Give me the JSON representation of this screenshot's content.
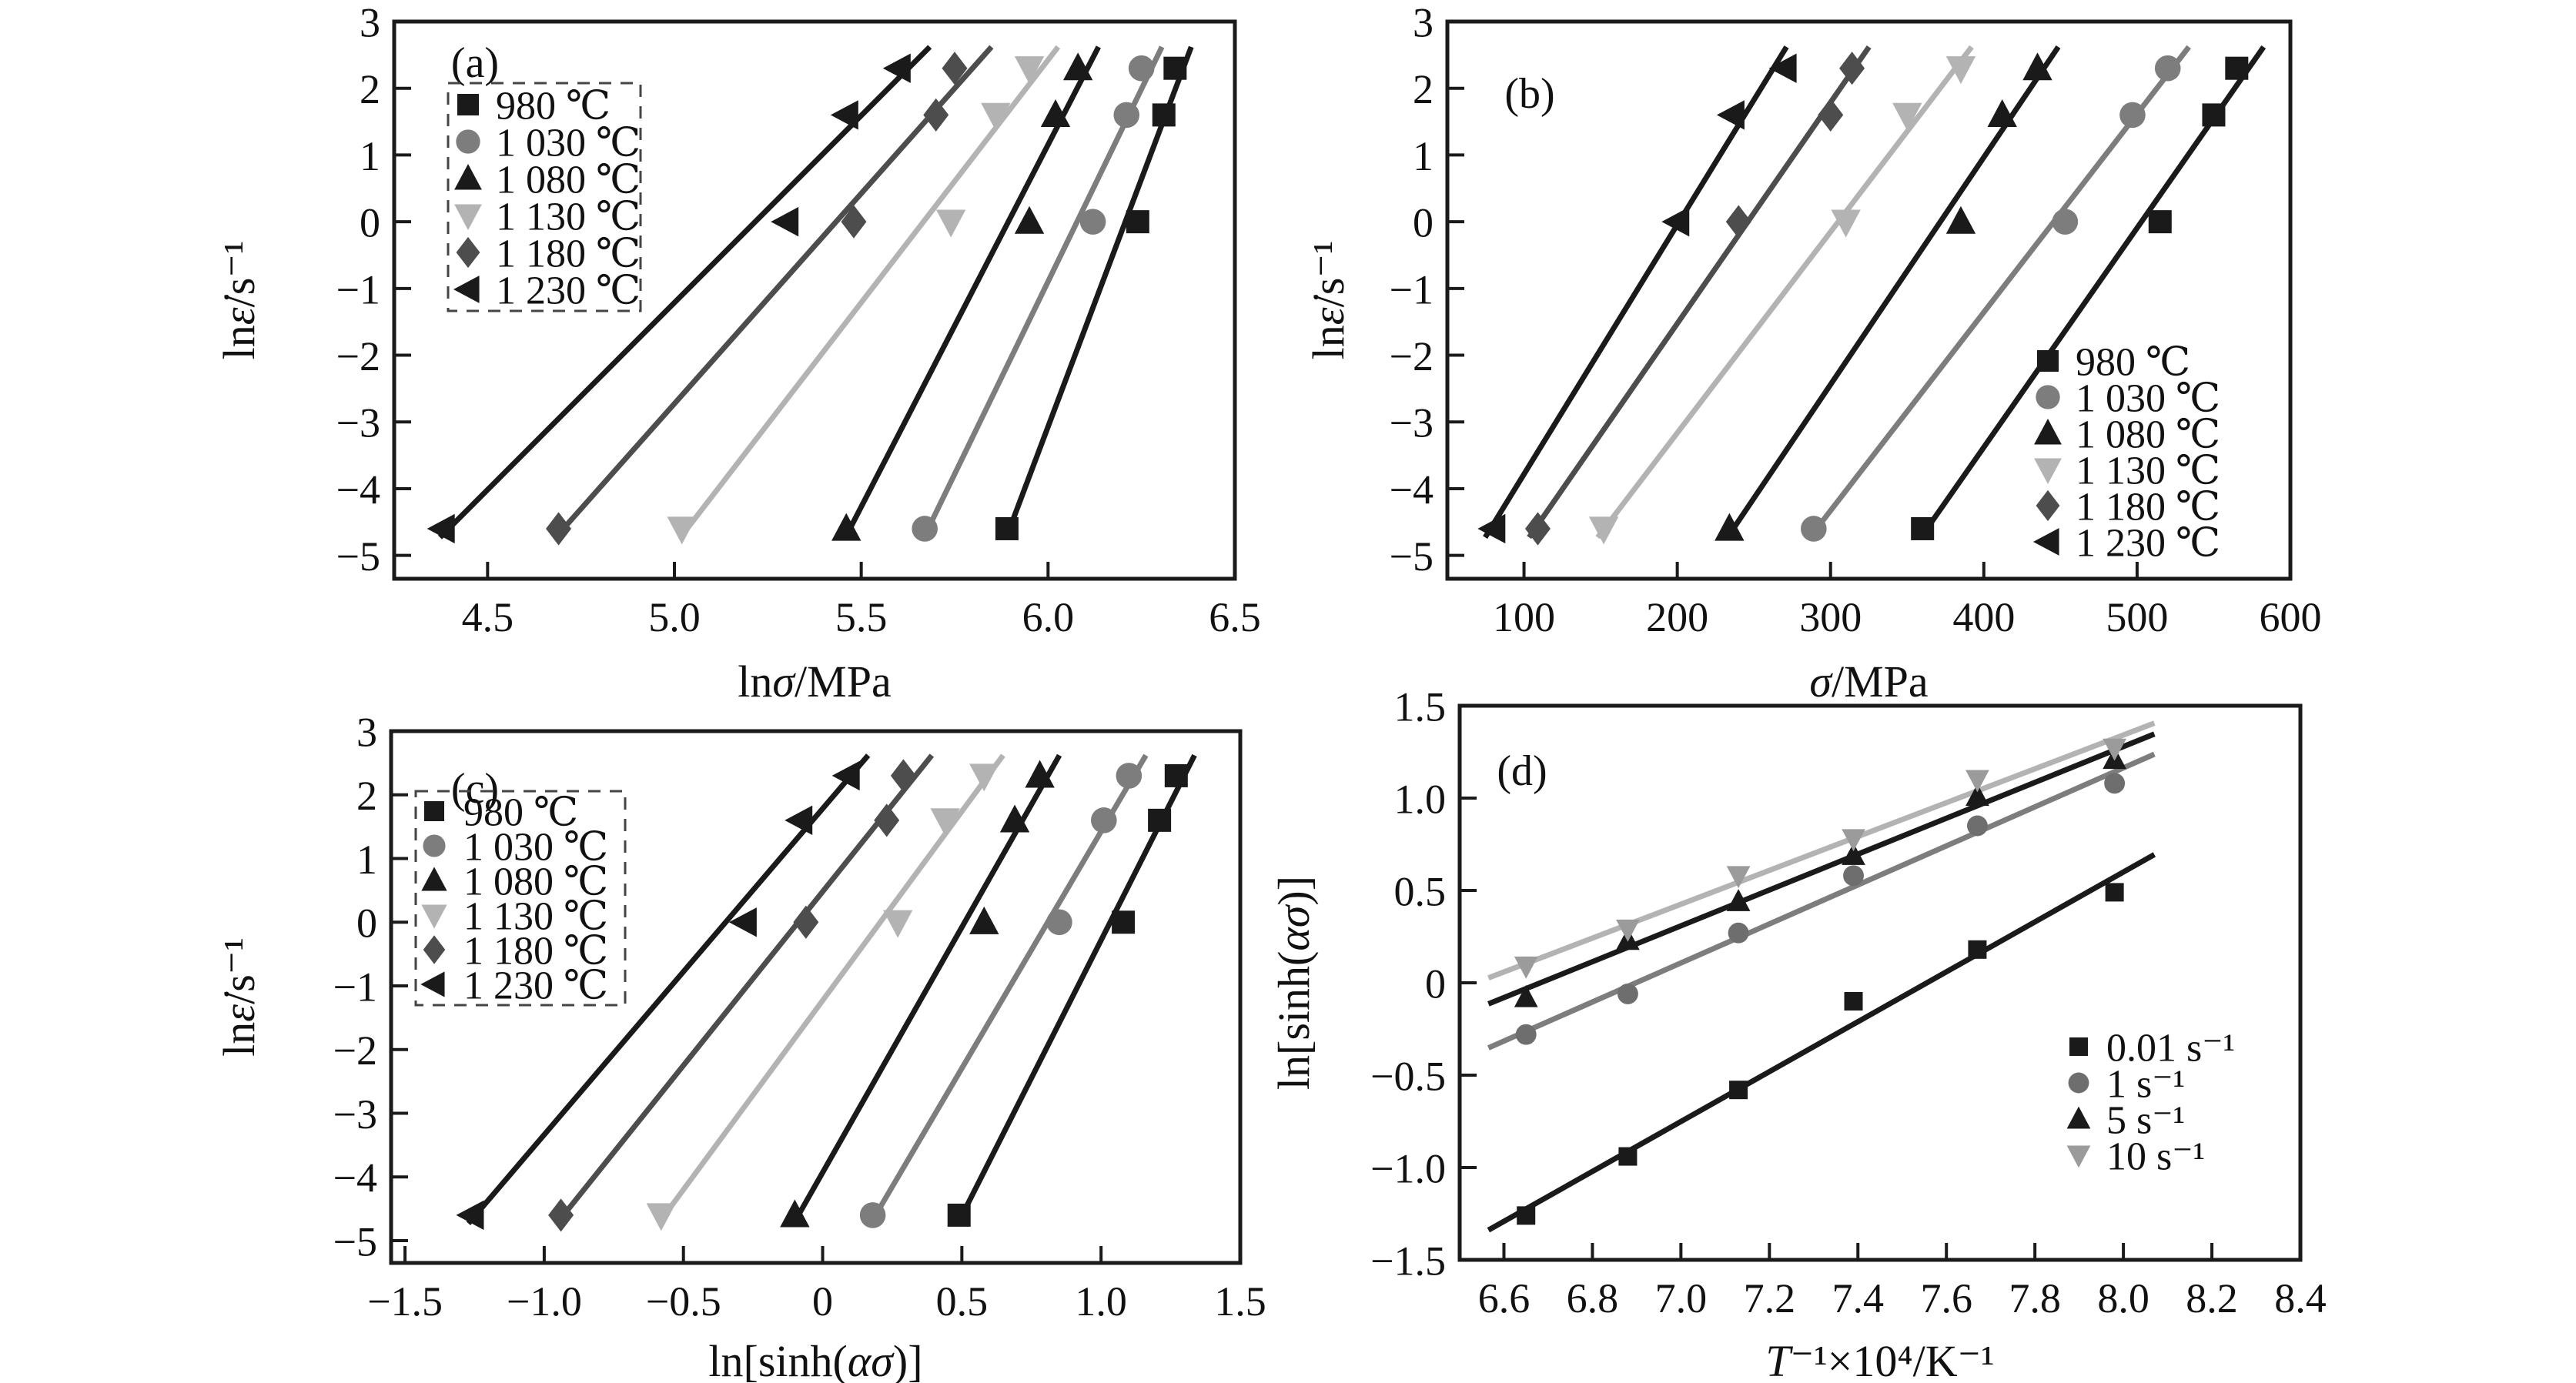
{
  "figure": {
    "background": "#ffffff",
    "ink_color": "#1a1a1a",
    "panel_tags": [
      "(a)",
      "(b)",
      "(c)",
      "(d)"
    ]
  },
  "chart_data": [
    {
      "id": "a",
      "type": "scatter",
      "title": "(a)",
      "xlabel": "lnσ/MPa",
      "ylabel": "lnε̇/s⁻¹",
      "xlim": [
        4.25,
        6.5
      ],
      "ylim": [
        -5.35,
        3
      ],
      "xtick_values": [
        4.5,
        5.0,
        5.5,
        6.0,
        6.5
      ],
      "xtick_labels": [
        "4.5",
        "5.0",
        "5.5",
        "6.0",
        "6.5"
      ],
      "ytick_values": [
        3,
        2,
        1,
        0,
        -1,
        -2,
        -3,
        -4,
        -5
      ],
      "ytick_labels": [
        "3",
        "2",
        "1",
        "0",
        "−1",
        "−2",
        "−3",
        "−4",
        "−5"
      ],
      "grid": false,
      "legend_position": "top-left",
      "trend_lines": true,
      "series": [
        {
          "name": "980 ℃",
          "marker": "square",
          "color": "#1a1a1a",
          "x": [
            5.89,
            6.24,
            6.31,
            6.34
          ],
          "y": [
            -4.6,
            0,
            1.6,
            2.3
          ]
        },
        {
          "name": "1 030 ℃",
          "marker": "circle",
          "color": "#7d7d7d",
          "x": [
            5.67,
            6.12,
            6.21,
            6.25
          ],
          "y": [
            -4.6,
            0,
            1.6,
            2.3
          ]
        },
        {
          "name": "1 080 ℃",
          "marker": "triangle-up",
          "color": "#1a1a1a",
          "x": [
            5.46,
            5.95,
            6.02,
            6.08
          ],
          "y": [
            -4.6,
            0,
            1.6,
            2.3
          ]
        },
        {
          "name": "1 130 ℃",
          "marker": "triangle-down",
          "color": "#b3b3b3",
          "x": [
            5.02,
            5.74,
            5.86,
            5.95
          ],
          "y": [
            -4.6,
            0,
            1.6,
            2.3
          ]
        },
        {
          "name": "1 180 ℃",
          "marker": "diamond",
          "color": "#4d4d4d",
          "x": [
            4.69,
            5.48,
            5.7,
            5.75
          ],
          "y": [
            -4.6,
            0,
            1.6,
            2.3
          ]
        },
        {
          "name": "1 230 ℃",
          "marker": "triangle-left",
          "color": "#1a1a1a",
          "x": [
            4.38,
            5.3,
            5.46,
            5.6
          ],
          "y": [
            -4.6,
            0,
            1.6,
            2.3
          ]
        }
      ]
    },
    {
      "id": "b",
      "type": "scatter",
      "title": "(b)",
      "xlabel": "σ/MPa",
      "ylabel": "lnε̇/s⁻¹",
      "xlim": [
        50,
        600
      ],
      "ylim": [
        -5.35,
        3
      ],
      "xtick_values": [
        100,
        200,
        300,
        400,
        500,
        600
      ],
      "xtick_labels": [
        "100",
        "200",
        "300",
        "400",
        "500",
        "600"
      ],
      "ytick_values": [
        3,
        2,
        1,
        0,
        -1,
        -2,
        -3,
        -4,
        -5
      ],
      "ytick_labels": [
        "3",
        "2",
        "1",
        "0",
        "−1",
        "−2",
        "−3",
        "−4",
        "−5"
      ],
      "grid": false,
      "legend_position": "bottom-right",
      "trend_lines": true,
      "series": [
        {
          "name": "980 ℃",
          "marker": "square",
          "color": "#1a1a1a",
          "x": [
            360,
            515,
            550,
            565
          ],
          "y": [
            -4.6,
            0,
            1.6,
            2.3
          ]
        },
        {
          "name": "1 030 ℃",
          "marker": "circle",
          "color": "#7d7d7d",
          "x": [
            289,
            453,
            497,
            520
          ],
          "y": [
            -4.6,
            0,
            1.6,
            2.3
          ]
        },
        {
          "name": "1 080 ℃",
          "marker": "triangle-up",
          "color": "#1a1a1a",
          "x": [
            234,
            385,
            412,
            435
          ],
          "y": [
            -4.6,
            0,
            1.6,
            2.3
          ]
        },
        {
          "name": "1 130 ℃",
          "marker": "triangle-down",
          "color": "#b3b3b3",
          "x": [
            152,
            310,
            350,
            385
          ],
          "y": [
            -4.6,
            0,
            1.6,
            2.3
          ]
        },
        {
          "name": "1 180 ℃",
          "marker": "diamond",
          "color": "#4d4d4d",
          "x": [
            109,
            240,
            300,
            314
          ],
          "y": [
            -4.6,
            0,
            1.6,
            2.3
          ]
        },
        {
          "name": "1 230 ℃",
          "marker": "triangle-left",
          "color": "#1a1a1a",
          "x": [
            80,
            200,
            236,
            270
          ],
          "y": [
            -4.6,
            0,
            1.6,
            2.3
          ]
        }
      ]
    },
    {
      "id": "c",
      "type": "scatter",
      "title": "(c)",
      "xlabel": "ln[sinh(ασ)]",
      "ylabel": "lnε̇/s⁻¹",
      "xlim": [
        -1.55,
        1.5
      ],
      "ylim": [
        -5.35,
        3
      ],
      "xtick_values": [
        -1.5,
        -1.0,
        -0.5,
        0,
        0.5,
        1.0,
        1.5
      ],
      "xtick_labels": [
        "−1.5",
        "−1.0",
        "−0.5",
        "0",
        "0.5",
        "1.0",
        "1.5"
      ],
      "ytick_values": [
        3,
        2,
        1,
        0,
        -1,
        -2,
        -3,
        -4,
        -5
      ],
      "ytick_labels": [
        "3",
        "2",
        "1",
        "0",
        "−1",
        "−2",
        "−3",
        "−4",
        "−5"
      ],
      "grid": false,
      "legend_position": "top-left",
      "trend_lines": true,
      "series": [
        {
          "name": "980 ℃",
          "marker": "square",
          "color": "#1a1a1a",
          "x": [
            0.49,
            1.08,
            1.21,
            1.27
          ],
          "y": [
            -4.6,
            0,
            1.6,
            2.3
          ]
        },
        {
          "name": "1 030 ℃",
          "marker": "circle",
          "color": "#7d7d7d",
          "x": [
            0.18,
            0.85,
            1.01,
            1.1
          ],
          "y": [
            -4.6,
            0,
            1.6,
            2.3
          ]
        },
        {
          "name": "1 080 ℃",
          "marker": "triangle-up",
          "color": "#1a1a1a",
          "x": [
            -0.1,
            0.58,
            0.69,
            0.78
          ],
          "y": [
            -4.6,
            0,
            1.6,
            2.3
          ]
        },
        {
          "name": "1 130 ℃",
          "marker": "triangle-down",
          "color": "#b3b3b3",
          "x": [
            -0.58,
            0.27,
            0.44,
            0.58
          ],
          "y": [
            -4.6,
            0,
            1.6,
            2.3
          ]
        },
        {
          "name": "1 180 ℃",
          "marker": "diamond",
          "color": "#4d4d4d",
          "x": [
            -0.94,
            -0.06,
            0.23,
            0.29
          ],
          "y": [
            -4.6,
            0,
            1.6,
            2.3
          ]
        },
        {
          "name": "1 230 ℃",
          "marker": "triangle-left",
          "color": "#1a1a1a",
          "x": [
            -1.26,
            -0.28,
            -0.08,
            0.09
          ],
          "y": [
            -4.6,
            0,
            1.6,
            2.3
          ]
        }
      ]
    },
    {
      "id": "d",
      "type": "scatter",
      "title": "(d)",
      "xlabel": "T⁻¹×10⁴/K⁻¹",
      "ylabel": "ln[sinh(ασ)]",
      "xlim": [
        6.5,
        8.4
      ],
      "ylim": [
        -1.5,
        1.5
      ],
      "xtick_values": [
        6.6,
        6.8,
        7.0,
        7.2,
        7.4,
        7.6,
        7.8,
        8.0,
        8.2,
        8.4
      ],
      "xtick_labels": [
        "6.6",
        "6.8",
        "7.0",
        "7.2",
        "7.4",
        "7.6",
        "7.8",
        "8.0",
        "8.2",
        "8.4"
      ],
      "ytick_values": [
        1.5,
        1.0,
        0.5,
        0,
        -0.5,
        -1.0,
        -1.5
      ],
      "ytick_labels": [
        "1.5",
        "1.0",
        "0.5",
        "0",
        "−0.5",
        "−1.0",
        "−1.5"
      ],
      "grid": false,
      "legend_position": "bottom-right",
      "trend_lines": true,
      "series": [
        {
          "name": "0.01 s⁻¹",
          "marker": "square",
          "color": "#1a1a1a",
          "x": [
            6.65,
            6.88,
            7.13,
            7.39,
            7.67,
            7.98
          ],
          "y": [
            -1.26,
            -0.94,
            -0.58,
            -0.1,
            0.18,
            0.49
          ]
        },
        {
          "name": "1 s⁻¹",
          "marker": "circle",
          "color": "#6e6e6e",
          "line_color": "#7d7d7d",
          "x": [
            6.65,
            6.88,
            7.13,
            7.39,
            7.67,
            7.98
          ],
          "y": [
            -0.28,
            -0.06,
            0.27,
            0.58,
            0.85,
            1.08
          ]
        },
        {
          "name": "5 s⁻¹",
          "marker": "triangle-up",
          "color": "#1a1a1a",
          "x": [
            6.65,
            6.88,
            7.13,
            7.39,
            7.67,
            7.98
          ],
          "y": [
            -0.08,
            0.23,
            0.44,
            0.69,
            1.01,
            1.21
          ]
        },
        {
          "name": "10 s⁻¹",
          "marker": "triangle-down",
          "color": "#9b9b9b",
          "line_color": "#b3b3b3",
          "x": [
            6.65,
            6.88,
            7.13,
            7.39,
            7.67,
            7.98
          ],
          "y": [
            0.09,
            0.29,
            0.58,
            0.78,
            1.1,
            1.27
          ]
        }
      ]
    }
  ]
}
